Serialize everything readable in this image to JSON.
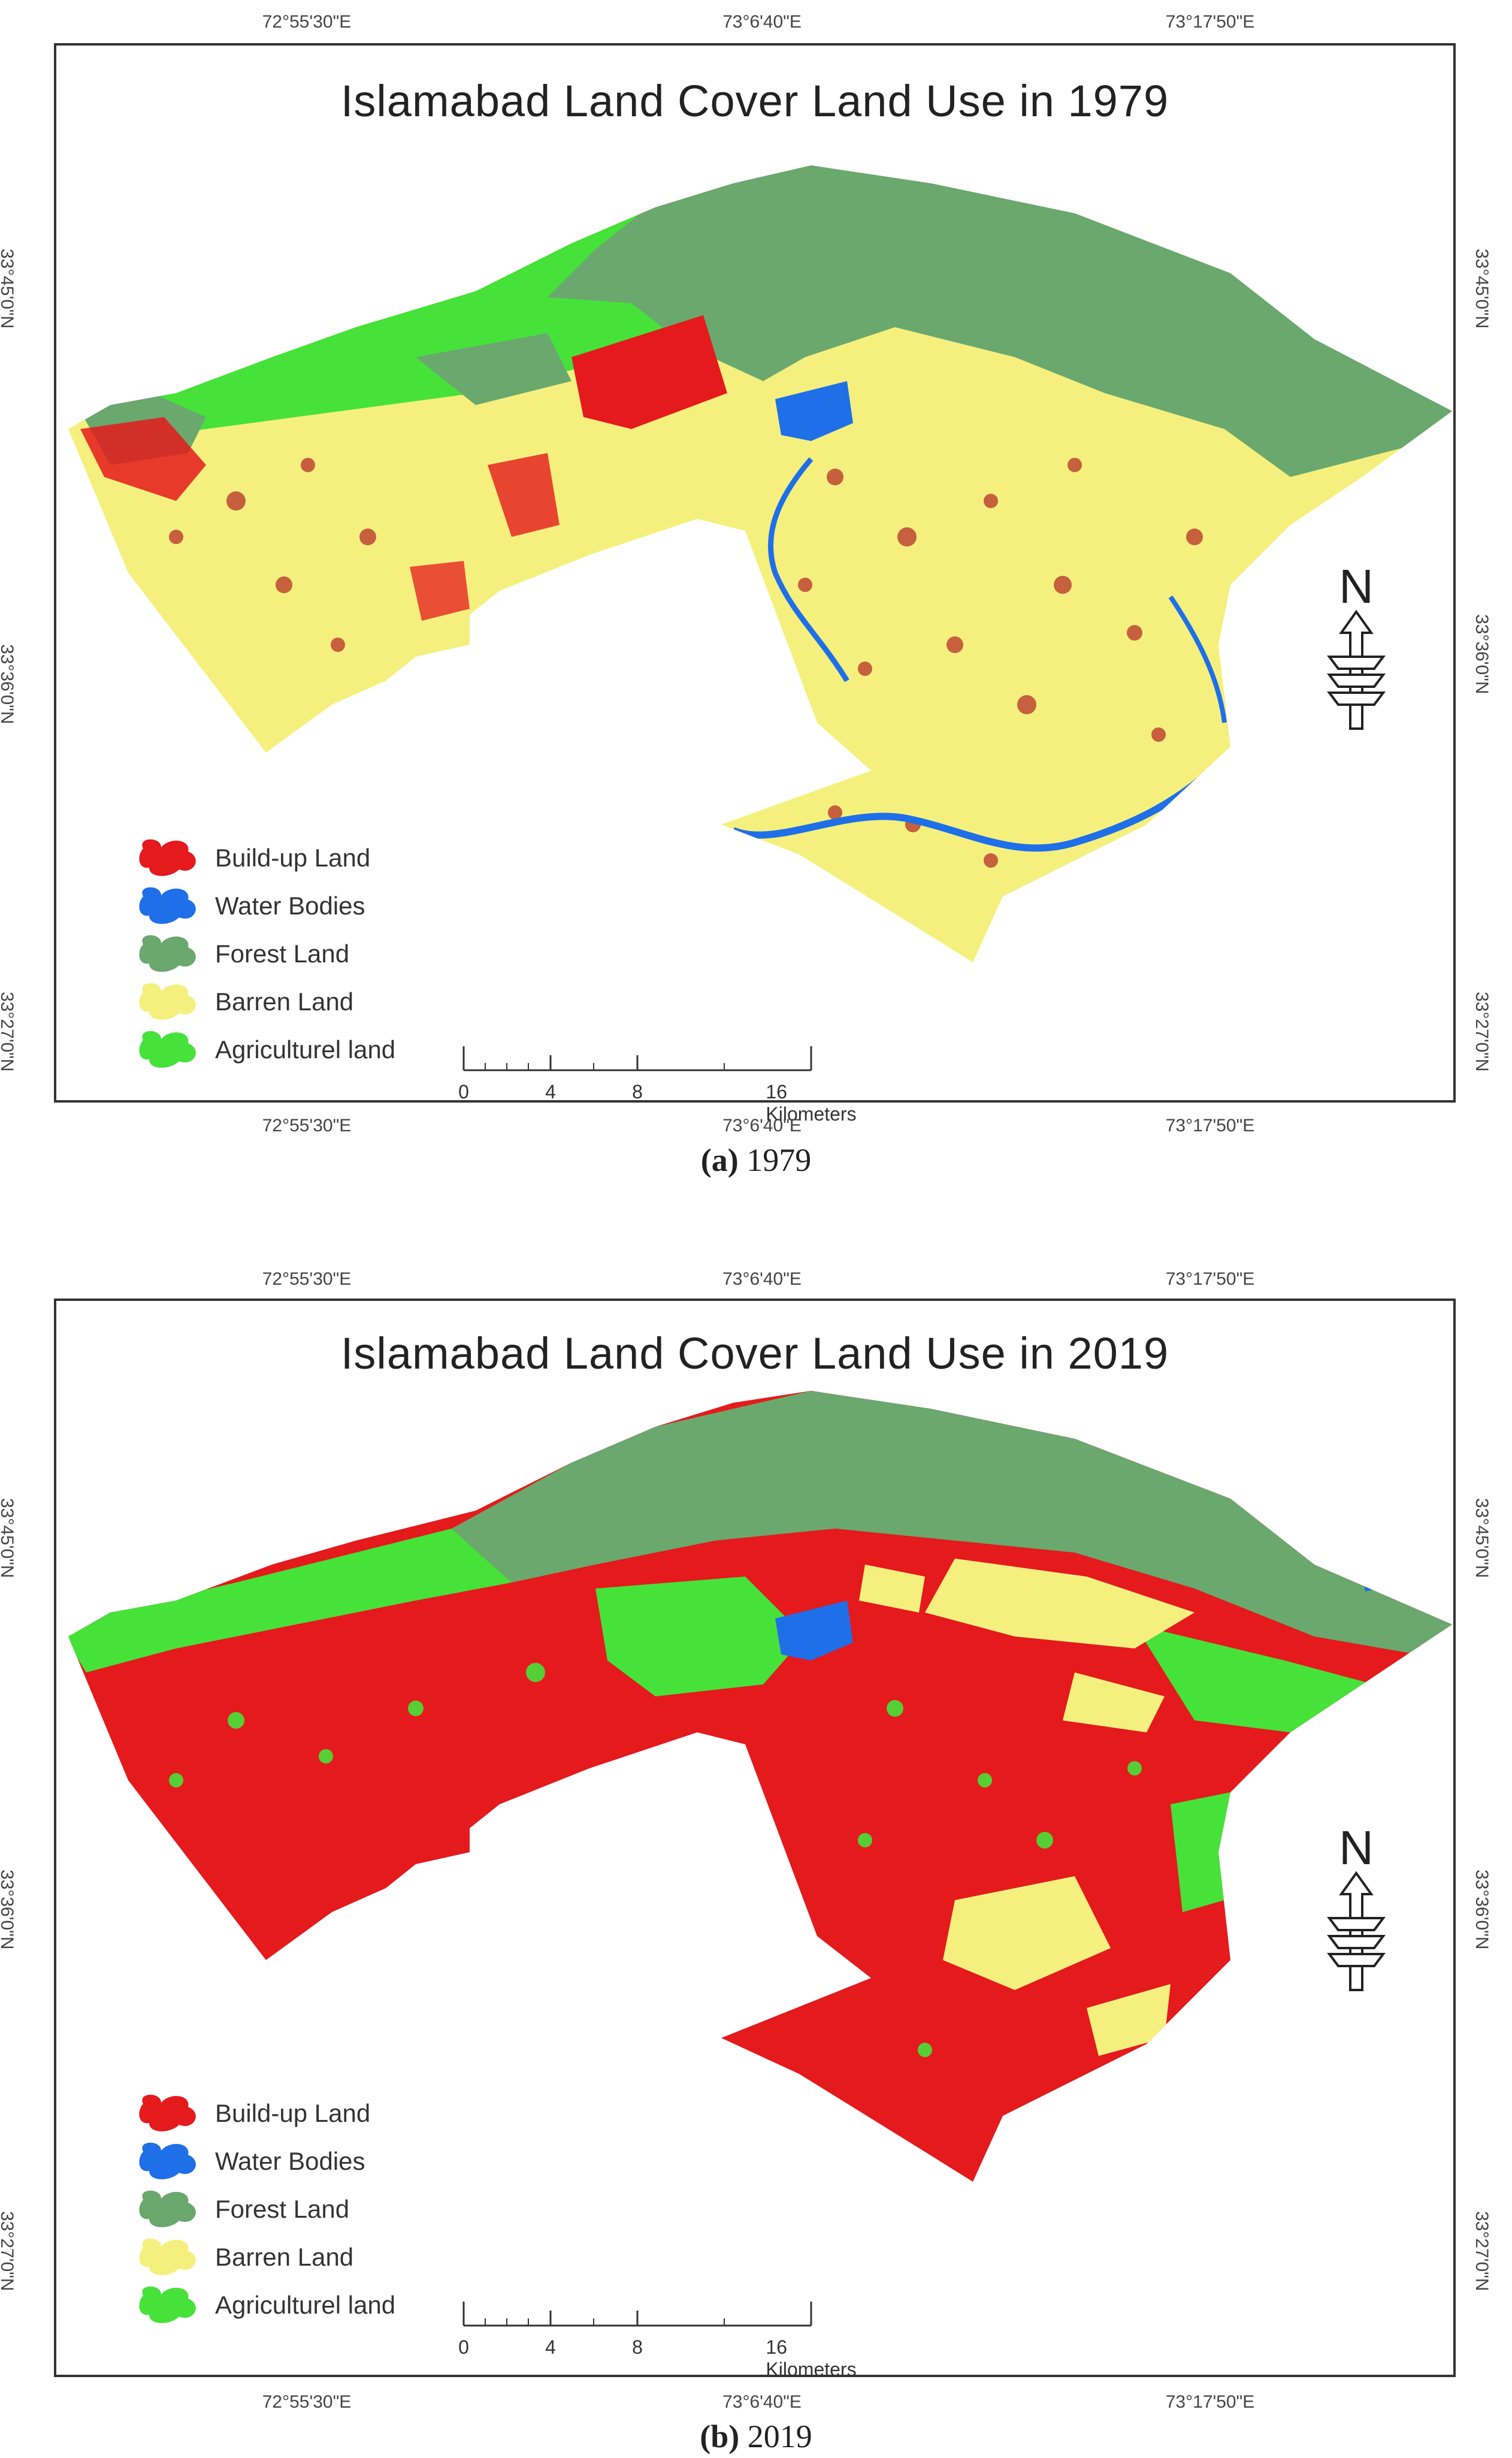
{
  "colors": {
    "build_up": "#e41a1c",
    "water": "#1f6fe8",
    "forest": "#6aa86e",
    "barren": "#f5f07e",
    "agri": "#46e23a"
  },
  "panel_a": {
    "title": "Islamabad Land Cover Land Use in 1979",
    "top_ticks": [
      "72°55'30\"E",
      "73°6'40\"E",
      "73°17'50\"E"
    ],
    "bottom_ticks": [
      "72°55'30\"E",
      "73°6'40\"E",
      "73°17'50\"E"
    ],
    "left_ticks": [
      "33°45'0\"N",
      "33°36'0\"N",
      "33°27'0\"N"
    ],
    "right_ticks": [
      "33°45'0\"N",
      "33°36'0\"N",
      "33°27'0\"N"
    ],
    "legend": [
      "Build-up Land",
      "Water Bodies",
      "Forest Land",
      "Barren Land",
      "Agriculturel land"
    ],
    "scale": [
      "0",
      "4",
      "8",
      "16 Kilometers"
    ],
    "north": "N",
    "caption_label": "(a)",
    "caption_text": " 1979"
  },
  "panel_b": {
    "title": "Islamabad Land Cover Land Use in 2019",
    "top_ticks": [
      "72°55'30\"E",
      "73°6'40\"E",
      "73°17'50\"E"
    ],
    "bottom_ticks": [
      "72°55'30\"E",
      "73°6'40\"E",
      "73°17'50\"E"
    ],
    "left_ticks": [
      "33°45'0\"N",
      "33°36'0\"N",
      "33°27'0\"N"
    ],
    "right_ticks": [
      "33°45'0\"N",
      "33°36'0\"N",
      "33°27'0\"N"
    ],
    "legend": [
      "Build-up Land",
      "Water Bodies",
      "Forest Land",
      "Barren Land",
      "Agriculturel land"
    ],
    "scale": [
      "0",
      "4",
      "8",
      "16 Kilometers"
    ],
    "north": "N",
    "caption_label": "(b)",
    "caption_text": " 2019"
  }
}
